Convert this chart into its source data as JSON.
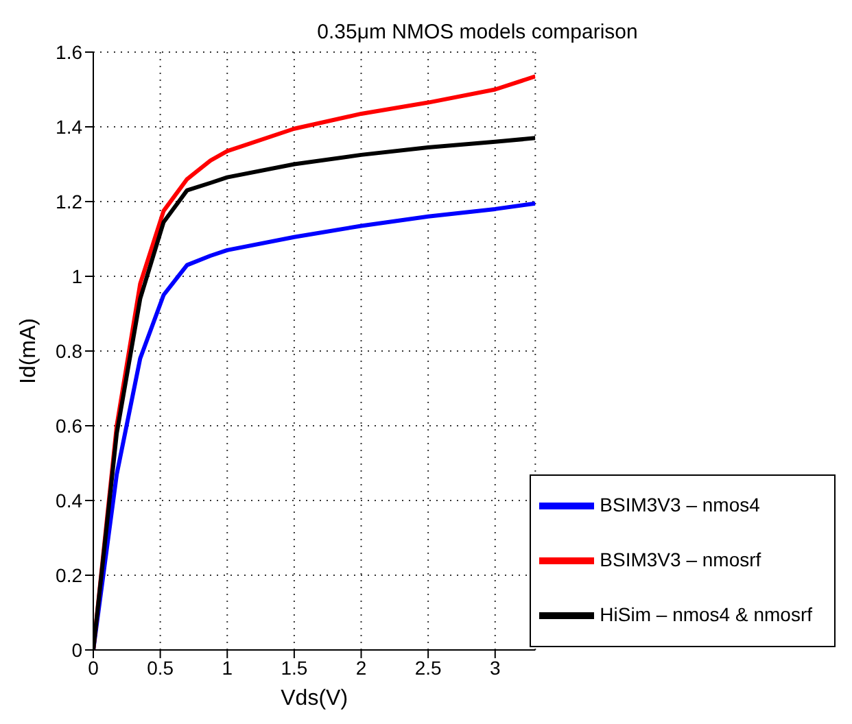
{
  "chart_data": {
    "type": "line",
    "title": "0.35μm NMOS models comparison",
    "xlabel": "Vds(V)",
    "ylabel": "Id(mA)",
    "x": [
      0,
      0.175,
      0.35,
      0.525,
      0.7,
      0.875,
      1,
      1.5,
      2,
      2.5,
      3,
      3.3
    ],
    "series": [
      {
        "name": "BSIM3V3 – nmos4",
        "color": "#0000ff",
        "values": [
          0,
          0.47,
          0.78,
          0.95,
          1.03,
          1.055,
          1.07,
          1.105,
          1.135,
          1.16,
          1.18,
          1.195
        ]
      },
      {
        "name": "BSIM3V3 – nmosrf",
        "color": "#ff0000",
        "values": [
          0,
          0.6,
          0.98,
          1.175,
          1.26,
          1.31,
          1.335,
          1.395,
          1.435,
          1.465,
          1.5,
          1.535
        ]
      },
      {
        "name": "HiSim – nmos4 & nmosrf",
        "color": "#000000",
        "values": [
          0,
          0.58,
          0.94,
          1.145,
          1.23,
          1.25,
          1.265,
          1.3,
          1.325,
          1.345,
          1.36,
          1.37
        ]
      }
    ],
    "xlim": [
      0,
      3.3
    ],
    "xticks": [
      0,
      0.5,
      1,
      1.5,
      2,
      2.5,
      3
    ],
    "ylim": [
      0,
      1.6
    ],
    "yticks": [
      0,
      0.2,
      0.4,
      0.6,
      0.8,
      1,
      1.2,
      1.4,
      1.6
    ],
    "grid": true,
    "legend": "bottom right",
    "marker": "none",
    "line_style": "solid"
  }
}
